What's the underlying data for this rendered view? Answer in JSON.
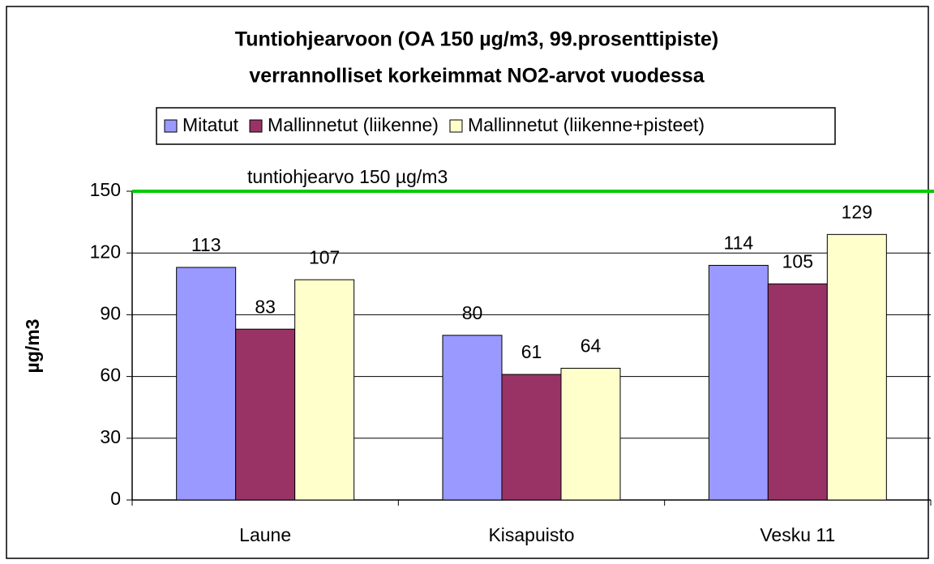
{
  "chart_data": {
    "type": "bar",
    "title": [
      "Tuntiohjearvoon (OA 150 µg/m3, 99.prosenttipiste)",
      "verrannolliset korkeimmat NO2-arvot vuodessa"
    ],
    "y_label": "µg/m3",
    "categories": [
      "Laune",
      "Kisapuisto",
      "Vesku 11"
    ],
    "series": [
      {
        "name": "Mitatut",
        "color": "#9999ff",
        "values": [
          113,
          80,
          114
        ]
      },
      {
        "name": "Mallinnetut (liikenne)",
        "color": "#993366",
        "values": [
          83,
          61,
          105
        ]
      },
      {
        "name": "Mallinnetut (liikenne+pisteet)",
        "color": "#ffffcc",
        "values": [
          107,
          64,
          129
        ]
      }
    ],
    "ylim": [
      0,
      150
    ],
    "yticks": [
      0,
      30,
      60,
      90,
      120,
      150
    ],
    "grid": true,
    "reference_line": {
      "value": 150,
      "label": "tuntiohjearvo 150 µg/m3",
      "color": "#00cc00"
    },
    "legend": "top"
  }
}
